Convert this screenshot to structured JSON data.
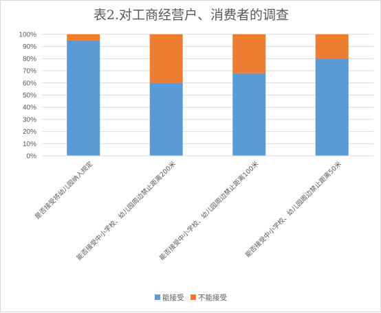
{
  "chart_data": {
    "type": "bar",
    "stacked": true,
    "title": "表2.对工商经营户、消费者的调查",
    "categories": [
      "是否接受将幼儿园纳入规定",
      "能否接受中小学校、幼儿园周边禁止距离200米",
      "能否接受中小学校、幼儿园周边禁止距离100米",
      "能否接受中小学校、幼儿园周边禁止距离50米"
    ],
    "series": [
      {
        "name": "能接受",
        "values": [
          95,
          60,
          68,
          80
        ],
        "color": "#5B9BD5"
      },
      {
        "name": "不能接受",
        "values": [
          5,
          40,
          32,
          20
        ],
        "color": "#ED7D31"
      }
    ],
    "y_ticks": [
      "0%",
      "10%",
      "20%",
      "30%",
      "40%",
      "50%",
      "60%",
      "70%",
      "80%",
      "90%",
      "100%"
    ],
    "ylim": [
      0,
      100
    ],
    "grid": true,
    "legend_position": "bottom"
  }
}
